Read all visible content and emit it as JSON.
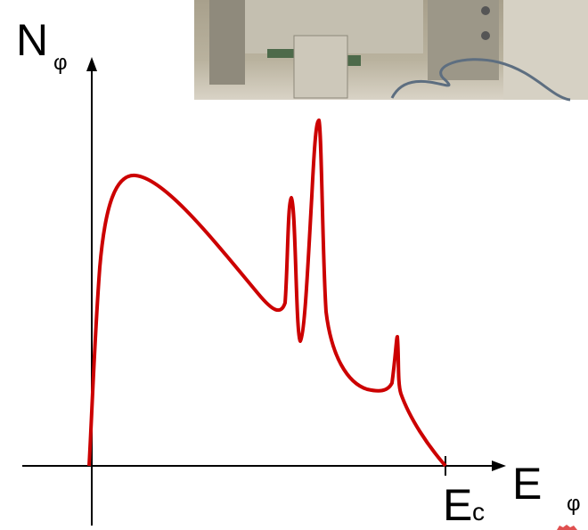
{
  "axis_labels": {
    "y": {
      "main": "N",
      "sub": "φ"
    },
    "x": {
      "main": "E",
      "sub": "φ"
    },
    "cutoff": {
      "main": "E",
      "sub": "c"
    }
  }
}
